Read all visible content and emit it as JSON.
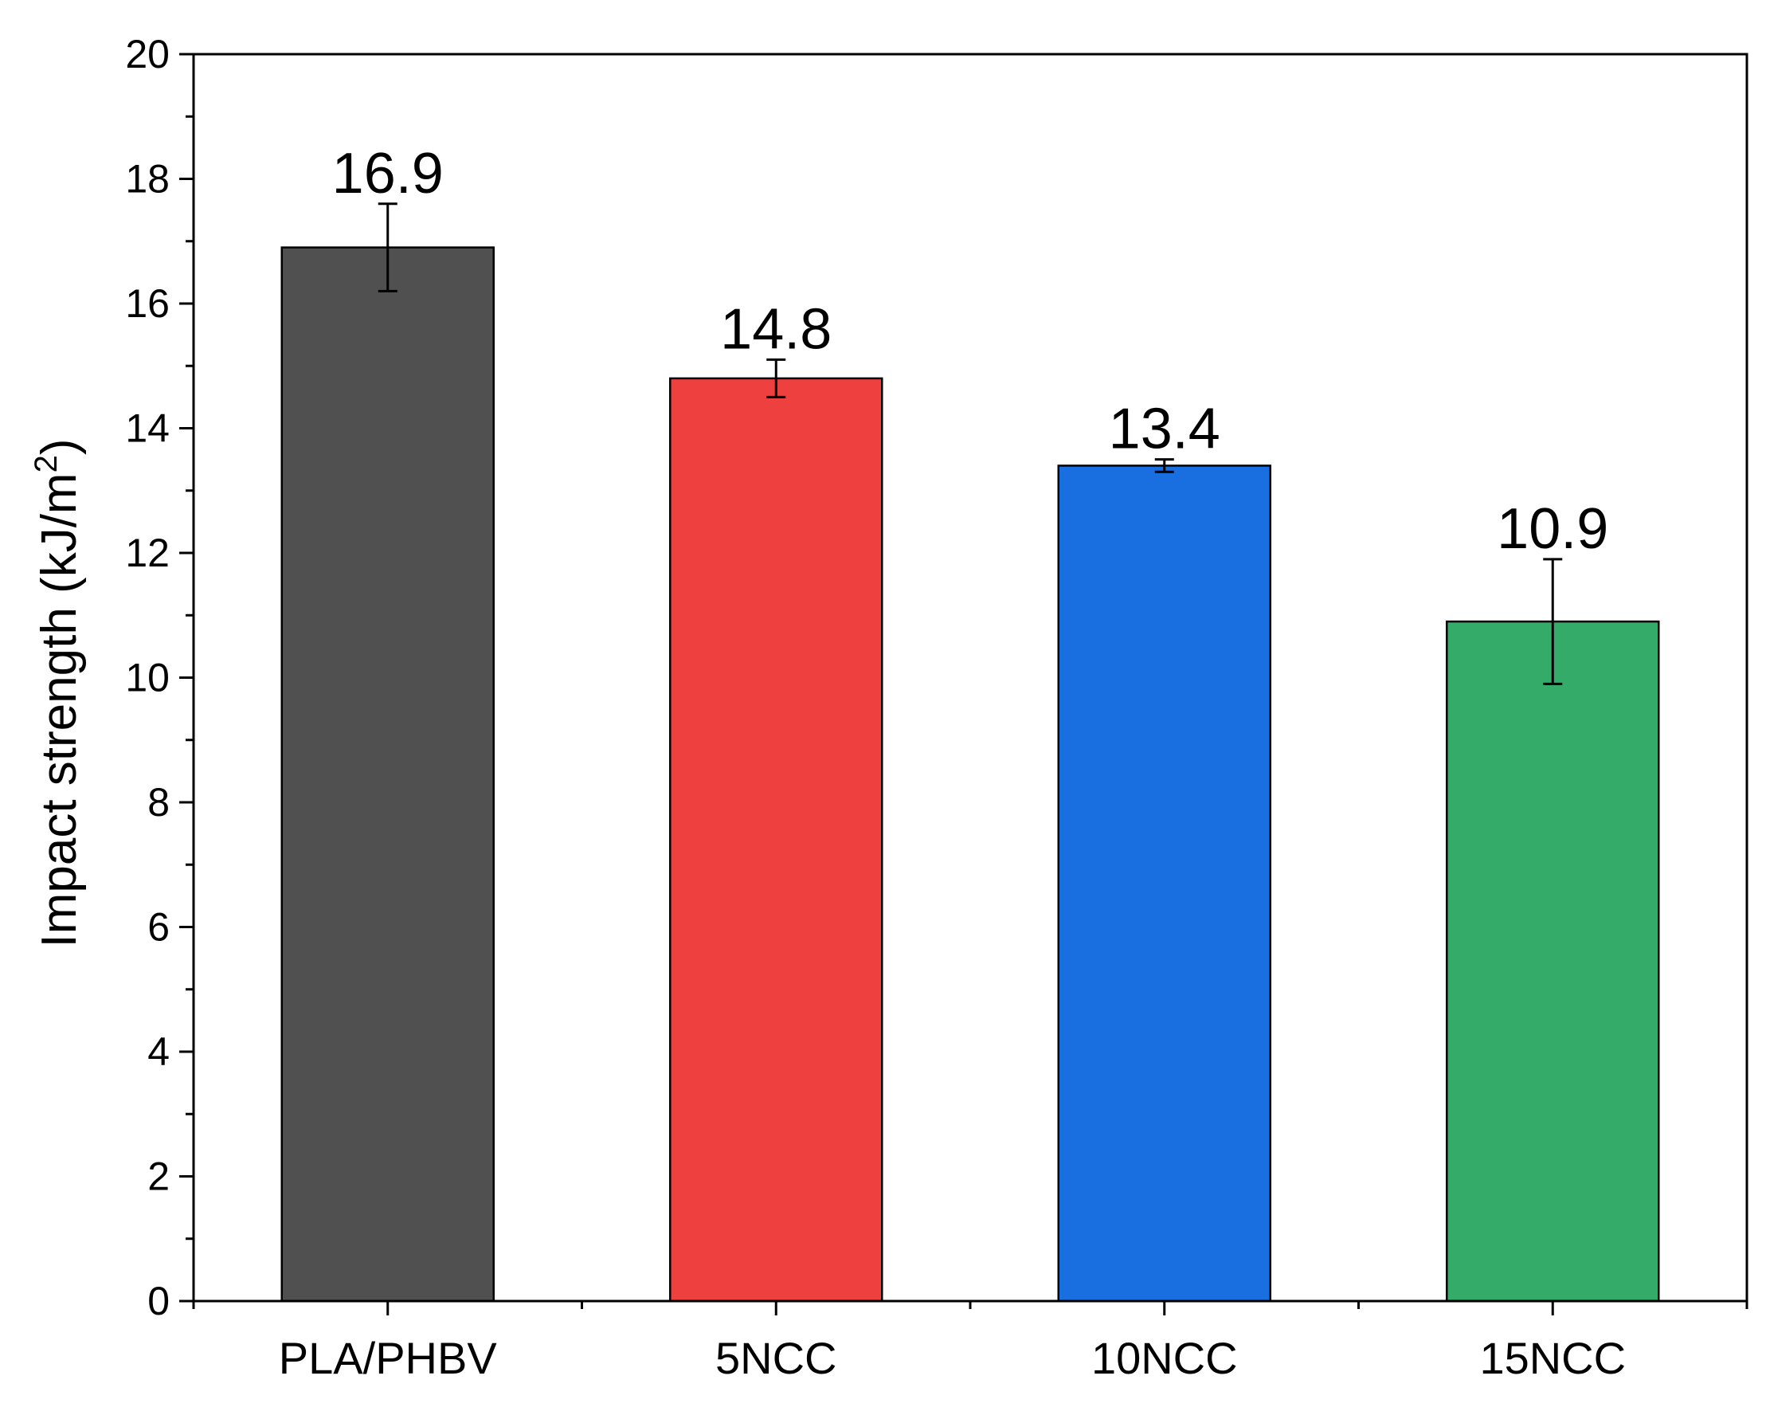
{
  "chart_data": {
    "type": "bar",
    "title": "",
    "xlabel": "",
    "ylabel": "Impact strength (kJ/m",
    "ylabel_superscript": "2",
    "ylabel_suffix": ")",
    "ylim": [
      0,
      20
    ],
    "yticks": [
      0,
      2,
      4,
      6,
      8,
      10,
      12,
      14,
      16,
      18,
      20
    ],
    "categories": [
      "PLA/PHBV",
      "5NCC",
      "10NCC",
      "15NCC"
    ],
    "values": [
      16.9,
      14.8,
      13.4,
      10.9
    ],
    "errors": [
      0.7,
      0.3,
      0.1,
      1.0
    ],
    "data_labels": [
      "16.9",
      "14.8",
      "13.4",
      "10.9"
    ],
    "colors": [
      "#505050",
      "#ef4040",
      "#1a6fe0",
      "#35ab6a"
    ],
    "grid": false,
    "legend": "none"
  }
}
